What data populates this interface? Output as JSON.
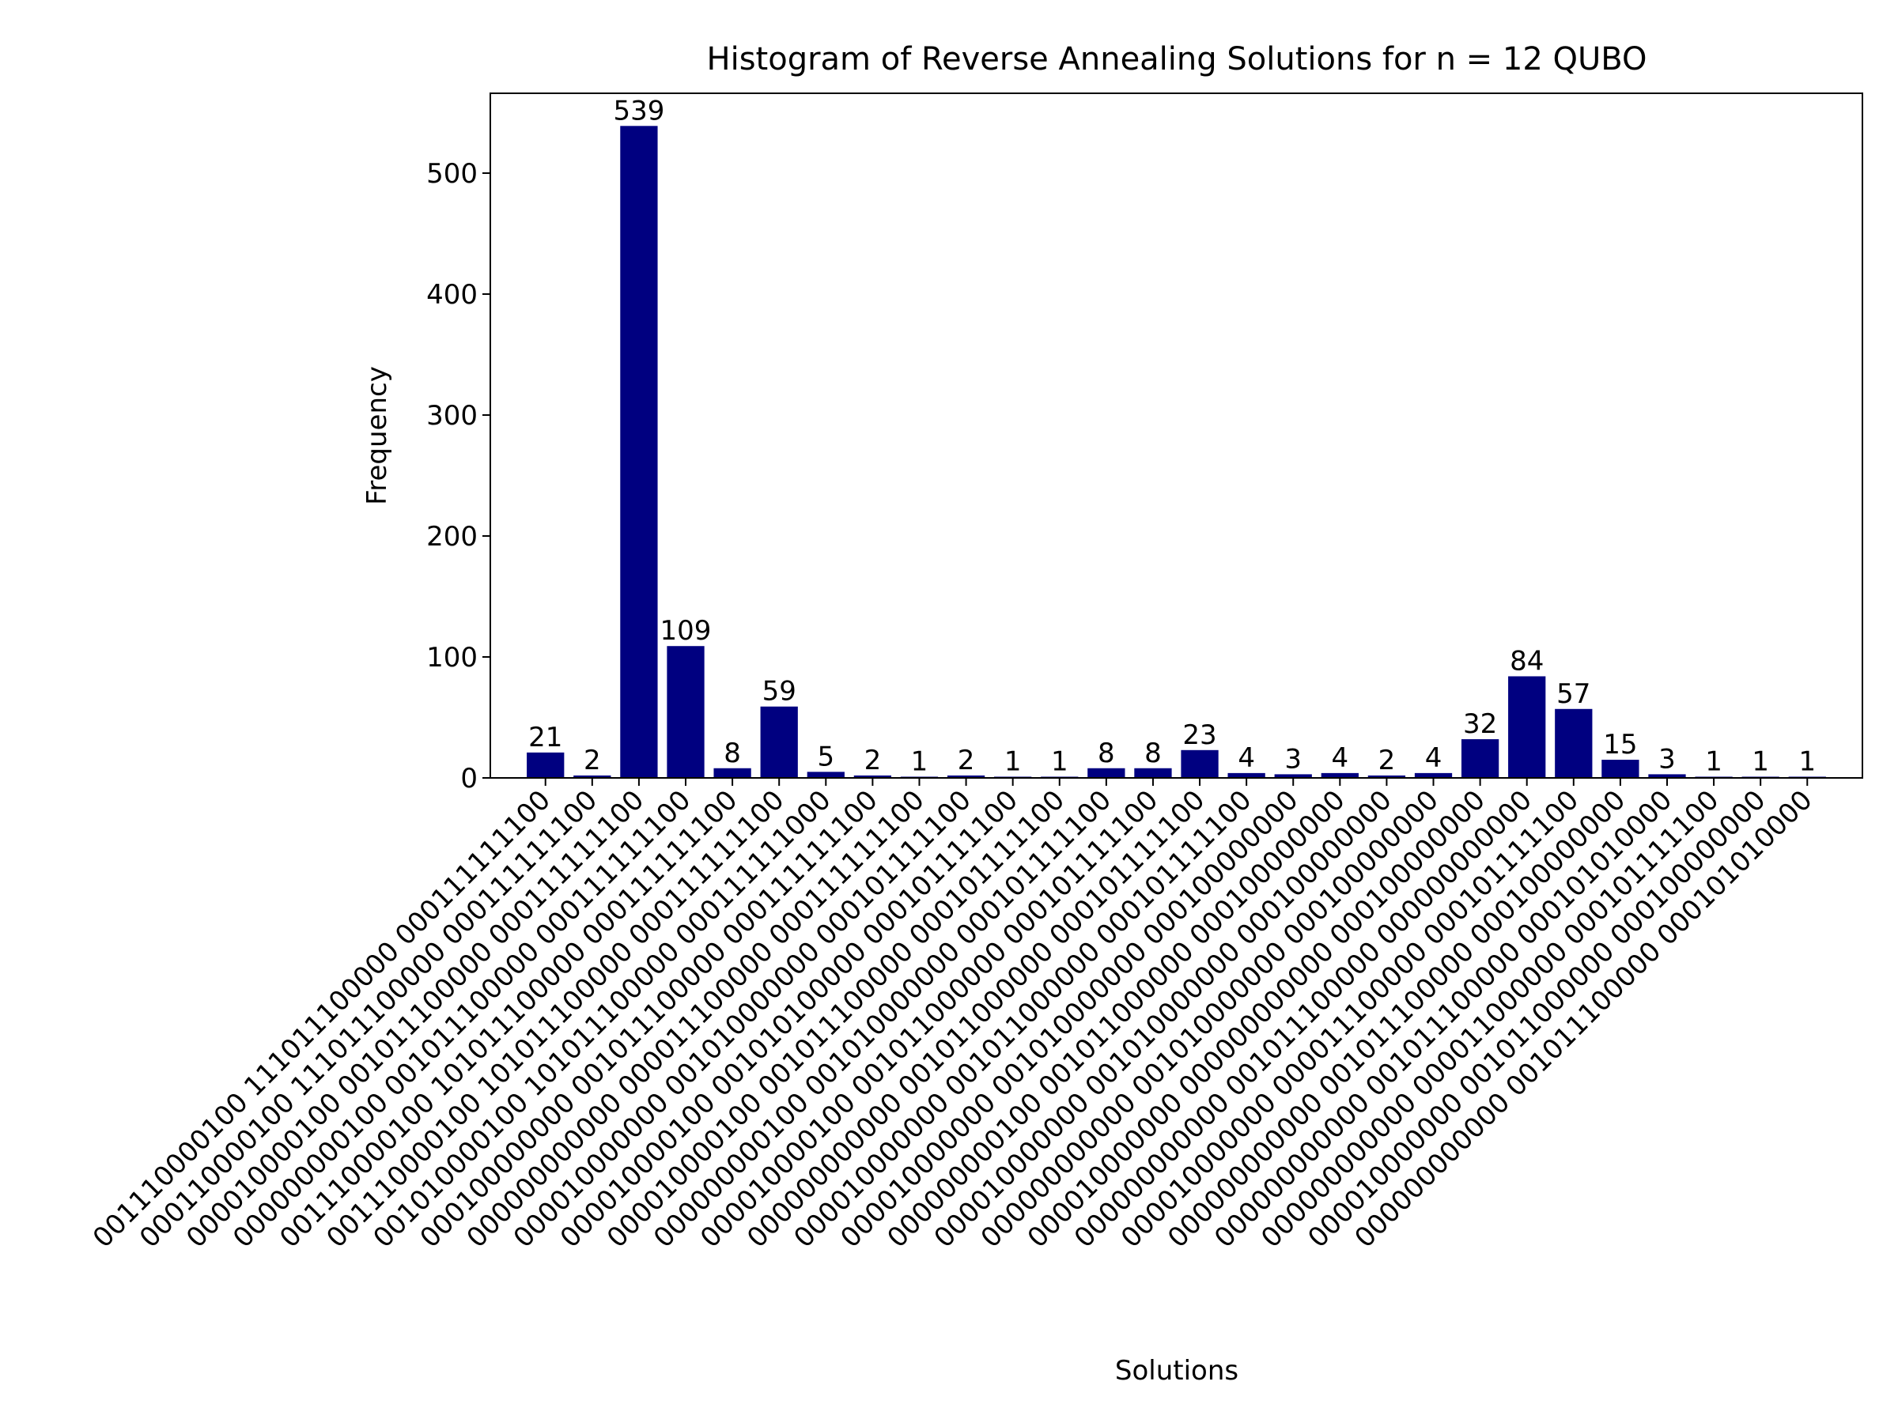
{
  "chart_data": {
    "type": "bar",
    "title": "Histogram of Reverse Annealing Solutions for n = 12 QUBO",
    "xlabel": "Solutions",
    "ylabel": "Frequency",
    "categories": [
      "001110000100 111011100000 000111111100",
      "000110000100 111011100000 000111111100",
      "000010000100 001011100000 000111111100",
      "000000000100 001011100000 000111111100",
      "001110000100 101011100000 000111111100",
      "001110000100 101011100000 000111111100",
      "001010000100 101011100000 000111111000",
      "000100000000 001011100000 000111111100",
      "000000000000 000011100000 000111111100",
      "000010000000 001010000000 000101111100",
      "000010000100 001010100000 000101111100",
      "000010000100 001011100000 000101111100",
      "000000000100 001010000000 000101111100",
      "000010000100 001011000000 000101111100",
      "000000000000 001011000000 000101111100",
      "000010000000 001011000000 000101111100",
      "000010000000 001010000000 000100000000",
      "000000000100 001011000000 000100000000",
      "000010000000 001010000000 000100000000",
      "000000000000 001010000000 000100000000",
      "000010000000 000000000000 000100000000",
      "000000000000 001011100000 000000000000",
      "000010000000 000011100000 000101111100",
      "000000000000 001011100000 000100000000",
      "000000000000 001011100000 000101010000",
      "000000000000 000011000000 000101111100",
      "000010000000 001011000000 000100000000",
      "000000000000 001011100000 000101010000"
    ],
    "values": [
      21,
      2,
      539,
      109,
      8,
      59,
      5,
      2,
      1,
      2,
      1,
      1,
      8,
      8,
      23,
      4,
      3,
      4,
      2,
      4,
      32,
      84,
      57,
      15,
      3,
      1,
      1,
      1
    ],
    "color": "#000080",
    "ylim": [
      0,
      566
    ],
    "yticks": [
      0,
      100,
      200,
      300,
      400,
      500
    ]
  }
}
